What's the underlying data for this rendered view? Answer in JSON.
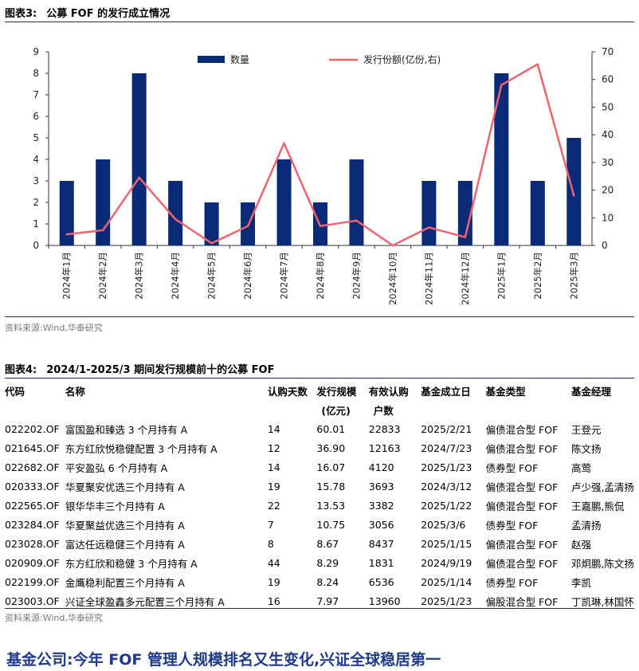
{
  "figure3": {
    "label": "图表3:",
    "title": "公募 FOF 的发行成立情况",
    "source": "资料来源:Wind,华泰研究"
  },
  "chart_data": {
    "type": "bar+line",
    "categories": [
      "2024年1月",
      "2024年2月",
      "2024年3月",
      "2024年4月",
      "2024年5月",
      "2024年6月",
      "2024年7月",
      "2024年8月",
      "2024年9月",
      "2024年10月",
      "2024年11月",
      "2024年12月",
      "2025年1月",
      "2025年2月",
      "2025年3月"
    ],
    "series": [
      {
        "name": "数量",
        "type": "bar",
        "axis": "left",
        "values": [
          3,
          4,
          8,
          3,
          2,
          2,
          4,
          2,
          4,
          0,
          3,
          3,
          8,
          3,
          5
        ]
      },
      {
        "name": "发行份额(亿份,右)",
        "type": "line",
        "axis": "right",
        "values": [
          4,
          5.5,
          24.5,
          9.5,
          0.8,
          7,
          37,
          7,
          9,
          0,
          6.5,
          3,
          58,
          65.5,
          18
        ]
      }
    ],
    "ylim_left": [
      0,
      9
    ],
    "ylim_right": [
      0,
      70
    ],
    "yticks_left": [
      "0",
      "1",
      "2",
      "3",
      "4",
      "5",
      "6",
      "7",
      "8",
      "9"
    ],
    "yticks_right": [
      "0",
      "10",
      "20",
      "30",
      "40",
      "50",
      "60",
      "70"
    ],
    "legend_position": "top",
    "colors": {
      "bar": "#0a2a78",
      "line": "#f0646e"
    }
  },
  "figure4": {
    "label": "图表4:",
    "title": "2024/1-2025/3 期间发行规模前十的公募 FOF",
    "headers": [
      "代码",
      "名称",
      "认购天数",
      "发行规模",
      "有效认购",
      "基金成立日",
      "基金类型",
      "基金经理"
    ],
    "units": [
      "",
      "",
      "",
      "(亿元)",
      "户数",
      "",
      "",
      ""
    ],
    "rows": [
      [
        "022202.OF",
        "富国盈和臻选 3 个月持有 A",
        "14",
        "60.01",
        "22833",
        "2025/2/21",
        "偏债混合型 FOF",
        "王登元"
      ],
      [
        "021645.OF",
        "东方红欣悦稳健配置 3 个月持有 A",
        "12",
        "36.90",
        "12163",
        "2024/7/23",
        "偏债混合型 FOF",
        "陈文扬"
      ],
      [
        "022682.OF",
        "平安盈弘 6 个月持有 A",
        "14",
        "16.07",
        "4120",
        "2025/1/23",
        "债券型 FOF",
        "高莺"
      ],
      [
        "020333.OF",
        "华夏聚安优选三个月持有 A",
        "19",
        "15.78",
        "3693",
        "2024/3/12",
        "偏债混合型 FOF",
        "卢少强,孟清扬"
      ],
      [
        "022565.OF",
        "银华华丰三个月持有 A",
        "22",
        "13.53",
        "3382",
        "2025/1/22",
        "偏债混合型 FOF",
        "王嘉鹏,熊侃"
      ],
      [
        "023284.OF",
        "华夏聚益优选三个月持有 A",
        "7",
        "10.75",
        "3056",
        "2025/3/6",
        "债券型 FOF",
        "孟清扬"
      ],
      [
        "023028.OF",
        "富达任远稳健三个月持有 A",
        "8",
        "8.67",
        "8437",
        "2025/1/15",
        "偏债混合型 FOF",
        "赵强"
      ],
      [
        "020909.OF",
        "东方红欣和稳健 3 个月持有 A",
        "44",
        "8.29",
        "1831",
        "2024/9/19",
        "偏债混合型 FOF",
        "邓炯鹏,陈文扬"
      ],
      [
        "022199.OF",
        "金鹰稳利配置三个月持有 A",
        "19",
        "8.24",
        "6536",
        "2025/1/14",
        "债券型 FOF",
        "李凯"
      ],
      [
        "023003.OF",
        "兴证全球盈鑫多元配置三个月持有 A",
        "16",
        "7.97",
        "13960",
        "2025/1/23",
        "偏股混合型 FOF",
        "丁凯琳,林国怀"
      ]
    ],
    "source": "资料来源:Wind,华泰研究"
  },
  "footer_heading": "基金公司:今年 FOF 管理人规模排名又生变化,兴证全球稳居第一"
}
